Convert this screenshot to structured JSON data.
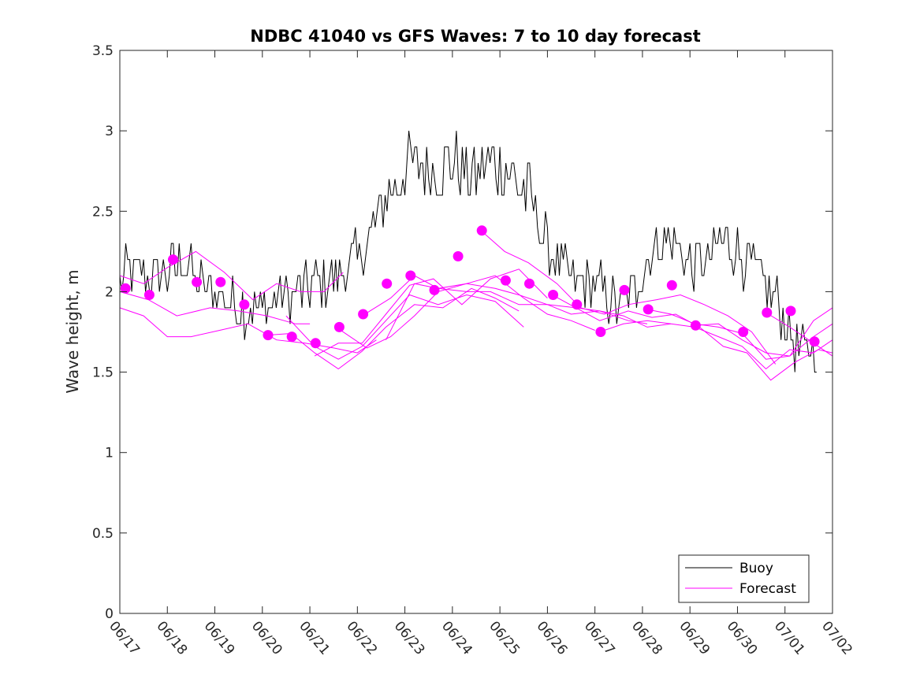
{
  "chart_data": {
    "type": "line",
    "title": "NDBC 41040 vs GFS Waves: 7 to 10 day forecast",
    "xlabel": "",
    "ylabel": "Wave height, m",
    "xlim_days": [
      0,
      15
    ],
    "ylim": [
      0,
      3.5
    ],
    "yticks": [
      "0",
      "0.5",
      "1",
      "1.5",
      "2",
      "2.5",
      "3",
      "3.5"
    ],
    "xticks": [
      "06/17",
      "06/18",
      "06/19",
      "06/20",
      "06/21",
      "06/22",
      "06/23",
      "06/24",
      "06/25",
      "06/26",
      "06/27",
      "06/28",
      "06/29",
      "06/30",
      "07/01",
      "07/02"
    ],
    "grid": false,
    "legend": {
      "position": "bottom-right",
      "entries": [
        {
          "label": "Buoy",
          "color": "#000000"
        },
        {
          "label": "Forecast",
          "color": "#ff00ff"
        }
      ]
    },
    "colors": {
      "buoy": "#000000",
      "forecast": "#ff00ff"
    },
    "buoy_anchors": [
      [
        0.0,
        2.1
      ],
      [
        0.5,
        2.12
      ],
      [
        1.0,
        2.12
      ],
      [
        1.4,
        2.2
      ],
      [
        1.6,
        2.05
      ],
      [
        1.9,
        2.0
      ],
      [
        2.2,
        1.98
      ],
      [
        2.6,
        1.9
      ],
      [
        3.0,
        1.9
      ],
      [
        3.3,
        1.95
      ],
      [
        3.7,
        2.0
      ],
      [
        4.1,
        2.05
      ],
      [
        4.5,
        2.1
      ],
      [
        4.8,
        2.15
      ],
      [
        5.1,
        2.25
      ],
      [
        5.4,
        2.45
      ],
      [
        5.7,
        2.62
      ],
      [
        6.0,
        2.75
      ],
      [
        6.3,
        2.8
      ],
      [
        6.6,
        2.76
      ],
      [
        7.0,
        2.78
      ],
      [
        7.3,
        2.72
      ],
      [
        7.6,
        2.75
      ],
      [
        8.0,
        2.78
      ],
      [
        8.3,
        2.72
      ],
      [
        8.6,
        2.6
      ],
      [
        8.9,
        2.35
      ],
      [
        9.2,
        2.15
      ],
      [
        9.6,
        2.05
      ],
      [
        10.0,
        2.05
      ],
      [
        10.3,
        1.95
      ],
      [
        10.6,
        1.9
      ],
      [
        10.9,
        2.05
      ],
      [
        11.2,
        2.25
      ],
      [
        11.5,
        2.35
      ],
      [
        11.8,
        2.25
      ],
      [
        12.1,
        2.15
      ],
      [
        12.4,
        2.2
      ],
      [
        12.7,
        2.35
      ],
      [
        13.0,
        2.25
      ],
      [
        13.3,
        2.15
      ],
      [
        13.6,
        2.05
      ],
      [
        13.9,
        1.9
      ],
      [
        14.2,
        1.65
      ],
      [
        14.5,
        1.65
      ],
      [
        14.7,
        1.7
      ]
    ],
    "forecast_points": [
      [
        0.12,
        2.02
      ],
      [
        0.62,
        1.98
      ],
      [
        1.12,
        2.2
      ],
      [
        1.62,
        2.06
      ],
      [
        2.12,
        2.06
      ],
      [
        2.62,
        1.92
      ],
      [
        3.12,
        1.73
      ],
      [
        3.62,
        1.72
      ],
      [
        4.12,
        1.68
      ],
      [
        4.62,
        1.78
      ],
      [
        5.12,
        1.86
      ],
      [
        5.62,
        2.05
      ],
      [
        6.12,
        2.1
      ],
      [
        6.62,
        2.01
      ],
      [
        7.12,
        2.22
      ],
      [
        7.62,
        2.38
      ],
      [
        8.12,
        2.07
      ],
      [
        8.62,
        2.05
      ],
      [
        9.12,
        1.98
      ],
      [
        9.62,
        1.92
      ],
      [
        10.12,
        1.75
      ],
      [
        10.62,
        2.01
      ],
      [
        11.12,
        1.89
      ],
      [
        11.62,
        2.04
      ],
      [
        12.12,
        1.79
      ],
      [
        13.12,
        1.75
      ],
      [
        13.62,
        1.87
      ],
      [
        14.12,
        1.88
      ],
      [
        14.62,
        1.69
      ]
    ],
    "forecast_lines": [
      [
        [
          0.0,
          2.1
        ],
        [
          0.5,
          2.05
        ],
        [
          1.0,
          2.15
        ],
        [
          1.6,
          2.25
        ],
        [
          2.2,
          2.12
        ],
        [
          2.8,
          1.95
        ],
        [
          3.3,
          2.05
        ],
        [
          3.8,
          2.0
        ],
        [
          4.3,
          2.0
        ],
        [
          4.7,
          2.12
        ]
      ],
      [
        [
          0.0,
          2.0
        ],
        [
          0.6,
          1.95
        ],
        [
          1.2,
          1.85
        ],
        [
          1.9,
          1.9
        ],
        [
          2.5,
          1.88
        ],
        [
          3.1,
          1.85
        ],
        [
          3.7,
          1.8
        ],
        [
          4.0,
          1.8
        ]
      ],
      [
        [
          0.0,
          1.9
        ],
        [
          0.5,
          1.85
        ],
        [
          1.0,
          1.72
        ],
        [
          1.5,
          1.72
        ],
        [
          2.1,
          1.76
        ],
        [
          2.7,
          1.8
        ],
        [
          3.3,
          1.7
        ],
        [
          3.9,
          1.68
        ],
        [
          4.5,
          1.65
        ],
        [
          5.0,
          1.62
        ],
        [
          5.4,
          1.7
        ]
      ],
      [
        [
          3.1,
          1.73
        ],
        [
          3.6,
          1.74
        ],
        [
          4.1,
          1.62
        ],
        [
          4.6,
          1.52
        ],
        [
          5.1,
          1.63
        ],
        [
          5.6,
          1.78
        ],
        [
          6.2,
          1.92
        ],
        [
          6.8,
          1.9
        ],
        [
          7.4,
          2.02
        ],
        [
          7.9,
          1.96
        ],
        [
          8.4,
          1.88
        ]
      ],
      [
        [
          3.5,
          1.85
        ],
        [
          4.1,
          1.66
        ],
        [
          4.6,
          1.58
        ],
        [
          5.1,
          1.66
        ],
        [
          5.6,
          1.82
        ],
        [
          6.1,
          1.98
        ],
        [
          6.7,
          1.92
        ],
        [
          7.3,
          1.98
        ],
        [
          7.9,
          1.94
        ],
        [
          8.5,
          1.78
        ]
      ],
      [
        [
          4.1,
          1.6
        ],
        [
          4.6,
          1.68
        ],
        [
          5.1,
          1.68
        ],
        [
          5.6,
          1.86
        ],
        [
          6.1,
          2.04
        ],
        [
          6.6,
          2.08
        ],
        [
          7.2,
          1.92
        ],
        [
          7.8,
          2.08
        ],
        [
          8.4,
          2.14
        ],
        [
          9.0,
          1.96
        ]
      ],
      [
        [
          4.6,
          1.77
        ],
        [
          5.2,
          1.65
        ],
        [
          5.7,
          1.72
        ],
        [
          6.2,
          1.85
        ],
        [
          6.7,
          2.0
        ],
        [
          7.3,
          2.05
        ],
        [
          7.9,
          2.1
        ],
        [
          8.5,
          1.96
        ],
        [
          9.0,
          1.86
        ],
        [
          9.5,
          1.82
        ],
        [
          10.0,
          1.76
        ]
      ],
      [
        [
          5.1,
          1.85
        ],
        [
          5.7,
          1.96
        ],
        [
          6.2,
          2.1
        ],
        [
          6.7,
          2.02
        ],
        [
          7.3,
          2.05
        ],
        [
          7.9,
          2.02
        ],
        [
          8.4,
          1.98
        ],
        [
          9.0,
          1.92
        ],
        [
          9.5,
          1.86
        ],
        [
          10.1,
          1.88
        ],
        [
          10.7,
          1.82
        ],
        [
          11.1,
          1.8
        ]
      ],
      [
        [
          5.6,
          1.7
        ],
        [
          6.2,
          2.05
        ],
        [
          6.7,
          2.02
        ],
        [
          7.3,
          2.0
        ],
        [
          7.8,
          2.0
        ],
        [
          8.4,
          1.92
        ],
        [
          9.0,
          1.92
        ],
        [
          9.6,
          1.9
        ],
        [
          10.1,
          1.88
        ],
        [
          10.6,
          1.85
        ],
        [
          11.1,
          1.78
        ],
        [
          11.6,
          1.8
        ]
      ],
      [
        [
          7.6,
          2.38
        ],
        [
          8.1,
          2.25
        ],
        [
          8.6,
          2.18
        ],
        [
          9.2,
          2.05
        ],
        [
          9.7,
          1.9
        ],
        [
          10.2,
          1.86
        ],
        [
          10.7,
          1.92
        ],
        [
          11.3,
          1.95
        ],
        [
          11.8,
          1.98
        ],
        [
          12.3,
          1.92
        ],
        [
          12.8,
          1.85
        ],
        [
          13.3,
          1.75
        ],
        [
          13.8,
          1.55
        ]
      ],
      [
        [
          9.1,
          1.98
        ],
        [
          9.6,
          1.9
        ],
        [
          10.1,
          1.82
        ],
        [
          10.7,
          1.88
        ],
        [
          11.2,
          1.84
        ],
        [
          11.7,
          1.86
        ],
        [
          12.2,
          1.78
        ],
        [
          12.7,
          1.66
        ],
        [
          13.2,
          1.62
        ],
        [
          13.7,
          1.45
        ],
        [
          14.2,
          1.56
        ],
        [
          14.7,
          1.64
        ],
        [
          15.0,
          1.62
        ]
      ],
      [
        [
          10.1,
          1.75
        ],
        [
          10.6,
          1.8
        ],
        [
          11.1,
          1.82
        ],
        [
          11.6,
          1.8
        ],
        [
          12.1,
          1.78
        ],
        [
          12.6,
          1.72
        ],
        [
          13.1,
          1.66
        ],
        [
          13.6,
          1.52
        ],
        [
          14.1,
          1.64
        ],
        [
          14.6,
          1.62
        ],
        [
          15.0,
          1.7
        ]
      ],
      [
        [
          11.1,
          1.89
        ],
        [
          11.6,
          1.86
        ],
        [
          12.1,
          1.8
        ],
        [
          12.6,
          1.78
        ],
        [
          13.1,
          1.74
        ],
        [
          13.6,
          1.58
        ],
        [
          14.1,
          1.6
        ],
        [
          14.6,
          1.72
        ],
        [
          15.0,
          1.8
        ]
      ],
      [
        [
          12.1,
          1.79
        ],
        [
          12.6,
          1.8
        ],
        [
          13.1,
          1.7
        ],
        [
          13.6,
          1.62
        ],
        [
          14.1,
          1.6
        ],
        [
          14.6,
          1.82
        ],
        [
          15.0,
          1.9
        ]
      ],
      [
        [
          13.6,
          1.87
        ],
        [
          14.1,
          1.78
        ],
        [
          14.6,
          1.68
        ],
        [
          15.0,
          1.6
        ]
      ]
    ]
  }
}
